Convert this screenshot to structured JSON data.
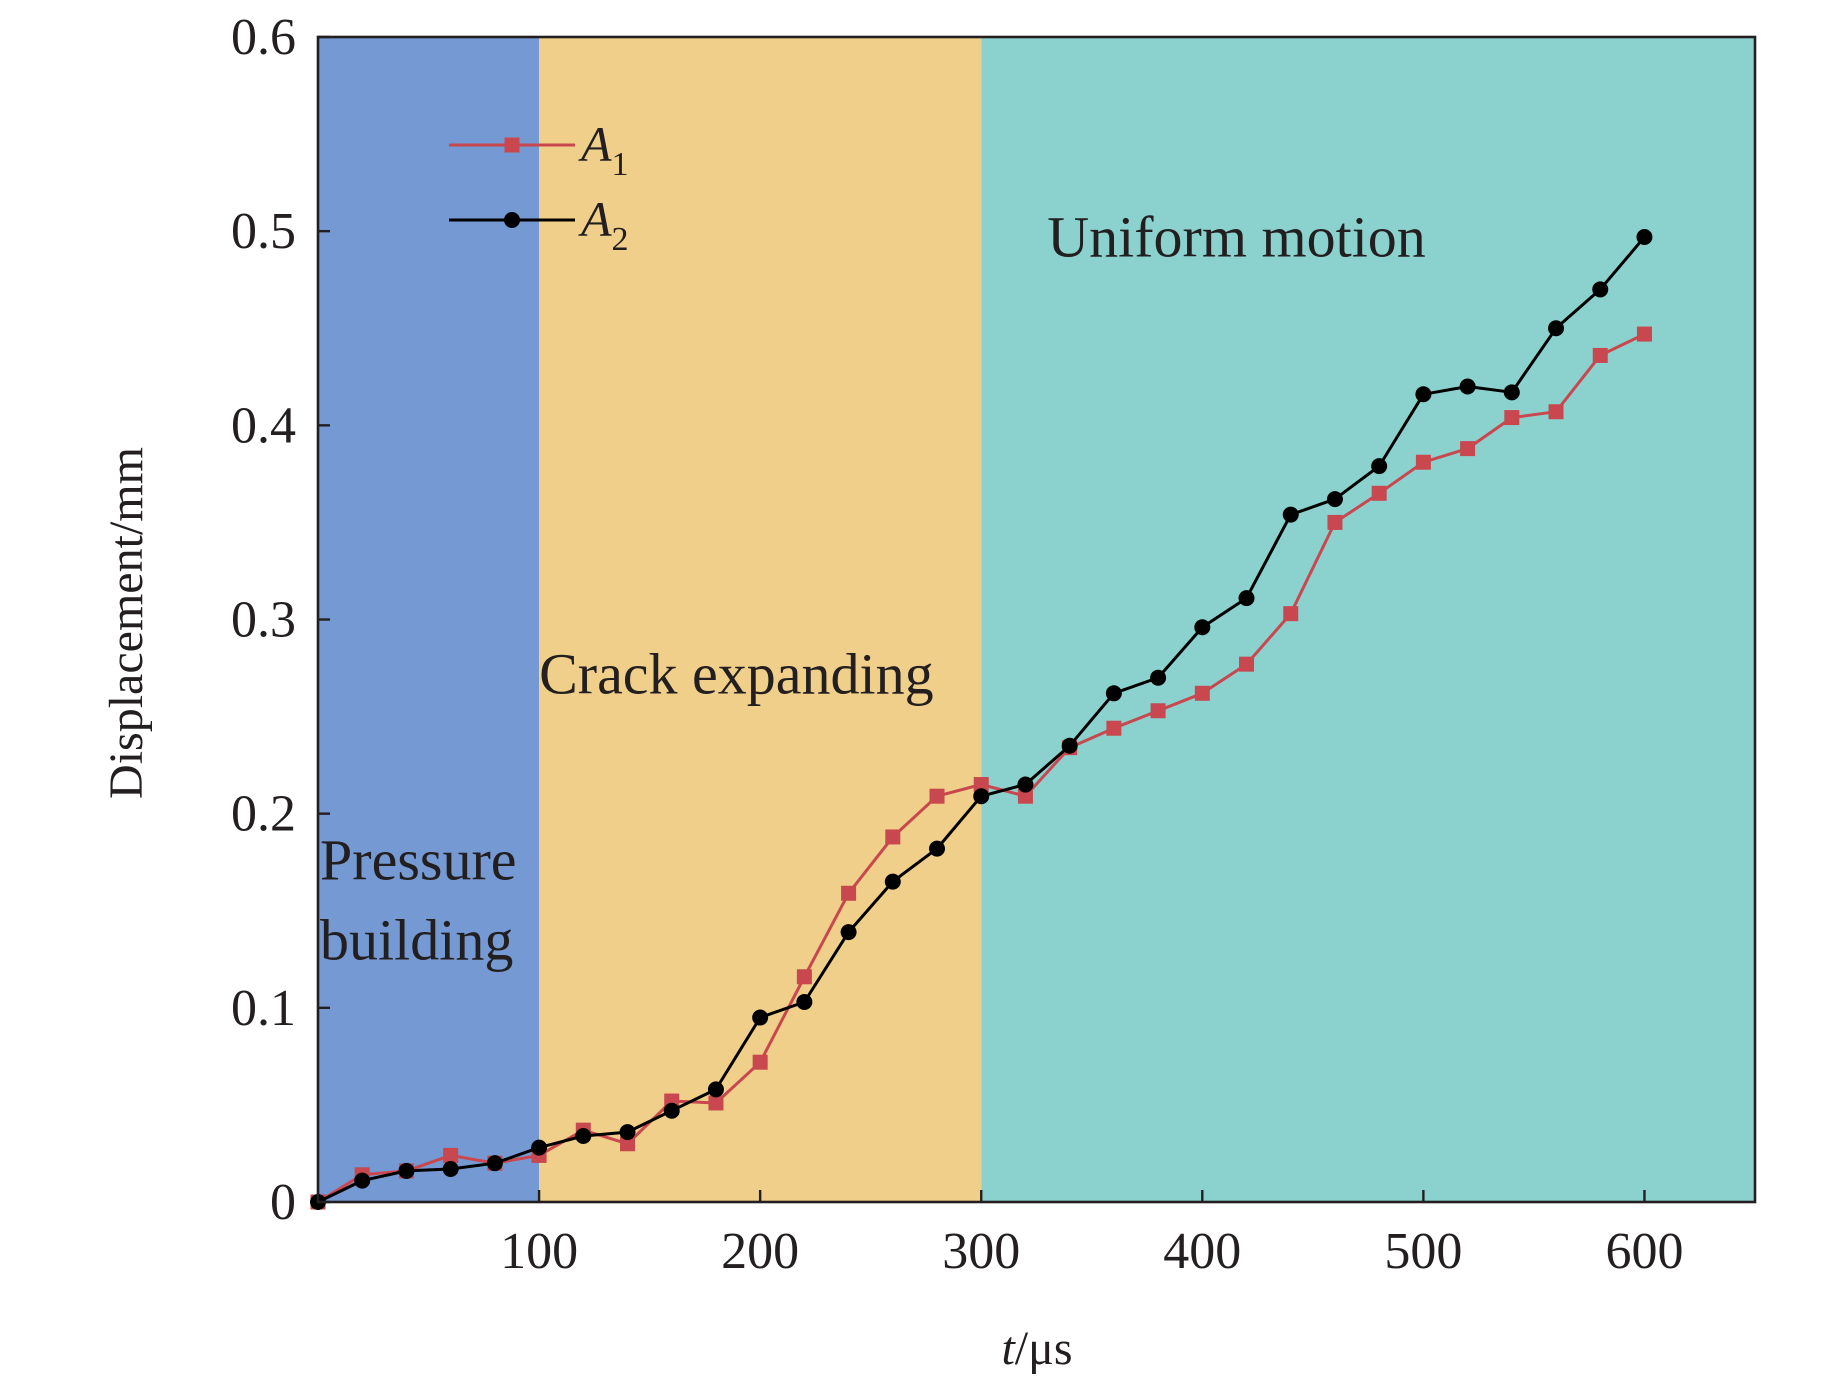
{
  "chart_data": {
    "type": "line",
    "title": "",
    "xlabel": {
      "var": "t",
      "unit": "/μs"
    },
    "ylabel": "Displacement/mm",
    "xlim": [
      0,
      650
    ],
    "ylim": [
      0,
      0.6
    ],
    "x_ticks": [
      100,
      200,
      300,
      400,
      500,
      600
    ],
    "x_tick_labels": [
      "100",
      "200",
      "300",
      "400",
      "500",
      "600"
    ],
    "y_ticks": [
      0,
      0.1,
      0.2,
      0.3,
      0.4,
      0.5,
      0.6
    ],
    "y_tick_labels": [
      "0",
      "0.1",
      "0.2",
      "0.3",
      "0.4",
      "0.5",
      "0.6"
    ],
    "grid": false,
    "legend_position": "top-left",
    "regions": [
      {
        "label_lines": [
          "Pressure",
          "building"
        ],
        "x0": 0,
        "x1": 100,
        "color": "#7599d2",
        "label_anchor": [
          2,
          0.166
        ]
      },
      {
        "label_lines": [
          "Crack expanding"
        ],
        "x0": 100,
        "x1": 300,
        "color": "#efcf8a",
        "label_anchor": [
          0,
          0.262
        ]
      },
      {
        "label_lines": [
          "Uniform motion"
        ],
        "x0": 300,
        "x1": 650,
        "color": "#8bd2cf",
        "label_anchor": [
          66,
          0.487
        ]
      }
    ],
    "x": [
      0,
      20,
      40,
      60,
      80,
      100,
      120,
      140,
      160,
      180,
      200,
      220,
      240,
      260,
      280,
      300,
      320,
      340,
      360,
      380,
      400,
      420,
      440,
      460,
      480,
      500,
      520,
      540,
      560,
      580,
      600
    ],
    "series": [
      {
        "name": "A",
        "subscript": "1",
        "color": "#c9474e",
        "marker": "square",
        "values": [
          0,
          0.014,
          0.016,
          0.024,
          0.02,
          0.024,
          0.037,
          0.03,
          0.052,
          0.051,
          0.072,
          0.116,
          0.159,
          0.188,
          0.209,
          0.215,
          0.209,
          0.234,
          0.244,
          0.253,
          0.262,
          0.277,
          0.303,
          0.35,
          0.365,
          0.381,
          0.388,
          0.404,
          0.407,
          0.436,
          0.447
        ]
      },
      {
        "name": "A",
        "subscript": "2",
        "color": "#000000",
        "marker": "circle",
        "values": [
          0,
          0.011,
          0.016,
          0.017,
          0.02,
          0.028,
          0.034,
          0.036,
          0.047,
          0.058,
          0.095,
          0.103,
          0.139,
          0.165,
          0.182,
          0.209,
          0.215,
          0.235,
          0.262,
          0.27,
          0.296,
          0.311,
          0.354,
          0.362,
          0.379,
          0.416,
          0.42,
          0.417,
          0.45,
          0.47,
          0.497
        ]
      }
    ]
  }
}
